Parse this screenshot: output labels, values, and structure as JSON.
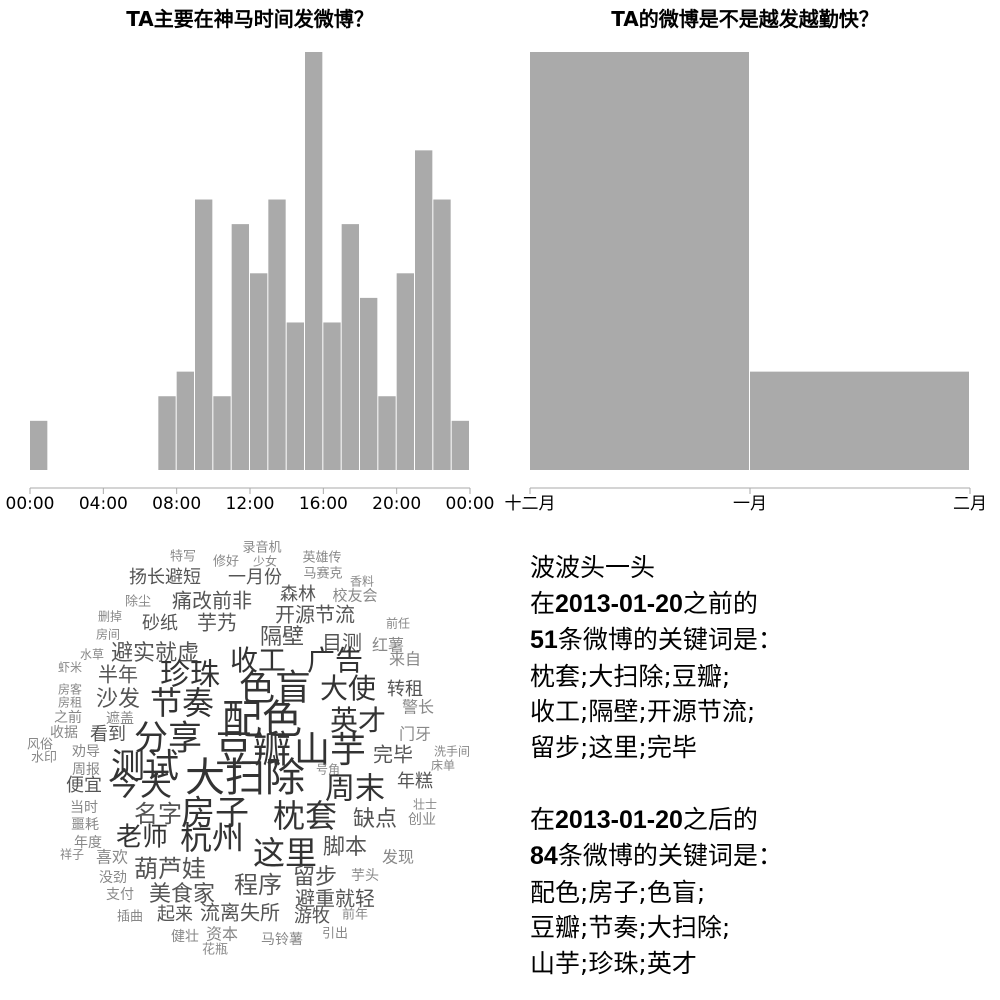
{
  "chart_data": [
    {
      "type": "histogram",
      "title": "TA主要在神马时间发微博？",
      "bins": [
        0,
        1,
        2,
        3,
        4,
        5,
        6,
        7,
        8,
        9,
        10,
        11,
        12,
        13,
        14,
        15,
        16,
        17,
        18,
        19,
        20,
        21,
        22,
        23,
        24
      ],
      "values": [
        2,
        0,
        0,
        0,
        0,
        0,
        0,
        3,
        4,
        11,
        3,
        10,
        8,
        11,
        6,
        17,
        6,
        10,
        7,
        3,
        8,
        13,
        11,
        2
      ],
      "xlim": [
        0,
        24
      ],
      "xticks": [
        {
          "value": 0,
          "label": "00:00"
        },
        {
          "value": 4,
          "label": "04:00"
        },
        {
          "value": 8,
          "label": "08:00"
        },
        {
          "value": 12,
          "label": "12:00"
        },
        {
          "value": 16,
          "label": "16:00"
        },
        {
          "value": 20,
          "label": "20:00"
        },
        {
          "value": 24,
          "label": "00:00"
        }
      ],
      "color": "#aaaaaa"
    },
    {
      "type": "histogram",
      "title": "TA的微博是不是越发越勤快？",
      "bins": [
        0,
        31,
        62
      ],
      "values": [
        17,
        4
      ],
      "xlim": [
        0,
        62
      ],
      "xticks": [
        {
          "value": 0,
          "label": "十二月"
        },
        {
          "value": 31,
          "label": "一月"
        },
        {
          "value": 62,
          "label": "二月"
        }
      ],
      "color": "#aaaaaa"
    }
  ],
  "word_cloud": {
    "words": [
      "特写",
      "录音机",
      "修好",
      "少女",
      "英雄传",
      "扬长避短",
      "一月份",
      "马赛克",
      "香料",
      "除尘",
      "痛改前非",
      "森林",
      "校友会",
      "删掉",
      "砂纸",
      "芋艿",
      "开源节流",
      "前任",
      "房间",
      "隔壁",
      "目测",
      "红薯",
      "水草",
      "避实就虚",
      "收工",
      "广告",
      "来自",
      "虾米",
      "珍珠",
      "色盲",
      "大使",
      "转租",
      "房客",
      "半年",
      "房租",
      "沙发",
      "节奏",
      "警长",
      "之前",
      "遮盖",
      "配色",
      "英才",
      "门牙",
      "收据",
      "看到",
      "分享",
      "豆瓣",
      "山芋",
      "完毕",
      "洗手间",
      "风俗",
      "水印",
      "床单",
      "劝导",
      "周报",
      "测试",
      "大扫除",
      "号角",
      "年糕",
      "便宜",
      "今天",
      "周末",
      "当时",
      "名字",
      "房子",
      "枕套",
      "缺点",
      "壮士",
      "创业",
      "噩耗",
      "老师",
      "杭州",
      "脚本",
      "年度",
      "祥子",
      "喜欢",
      "这里",
      "发现",
      "没劲",
      "葫芦娃",
      "程序",
      "留步",
      "芋头",
      "支付",
      "美食家",
      "避重就轻",
      "插曲",
      "起来",
      "流离失所",
      "游牧",
      "前年",
      "健壮",
      "资本",
      "马铃薯",
      "引出",
      "花瓶"
    ]
  },
  "summary": {
    "name": "波波头一头",
    "before": {
      "prefix": "在",
      "date": "2013-01-20",
      "suffix": "之前的",
      "count": 51,
      "count_suffix": "条微博的关键词是：",
      "keyword_lines": [
        "枕套;大扫除;豆瓣;",
        "收工;隔壁;开源节流;",
        "留步;这里;完毕"
      ]
    },
    "after": {
      "prefix": "在",
      "date": "2013-01-20",
      "suffix": "之后的",
      "count": 84,
      "count_suffix": "条微博的关键词是：",
      "keyword_lines": [
        "配色;房子;色盲;",
        "豆瓣;节奏;大扫除;",
        "山芋;珍珠;英才"
      ]
    }
  }
}
